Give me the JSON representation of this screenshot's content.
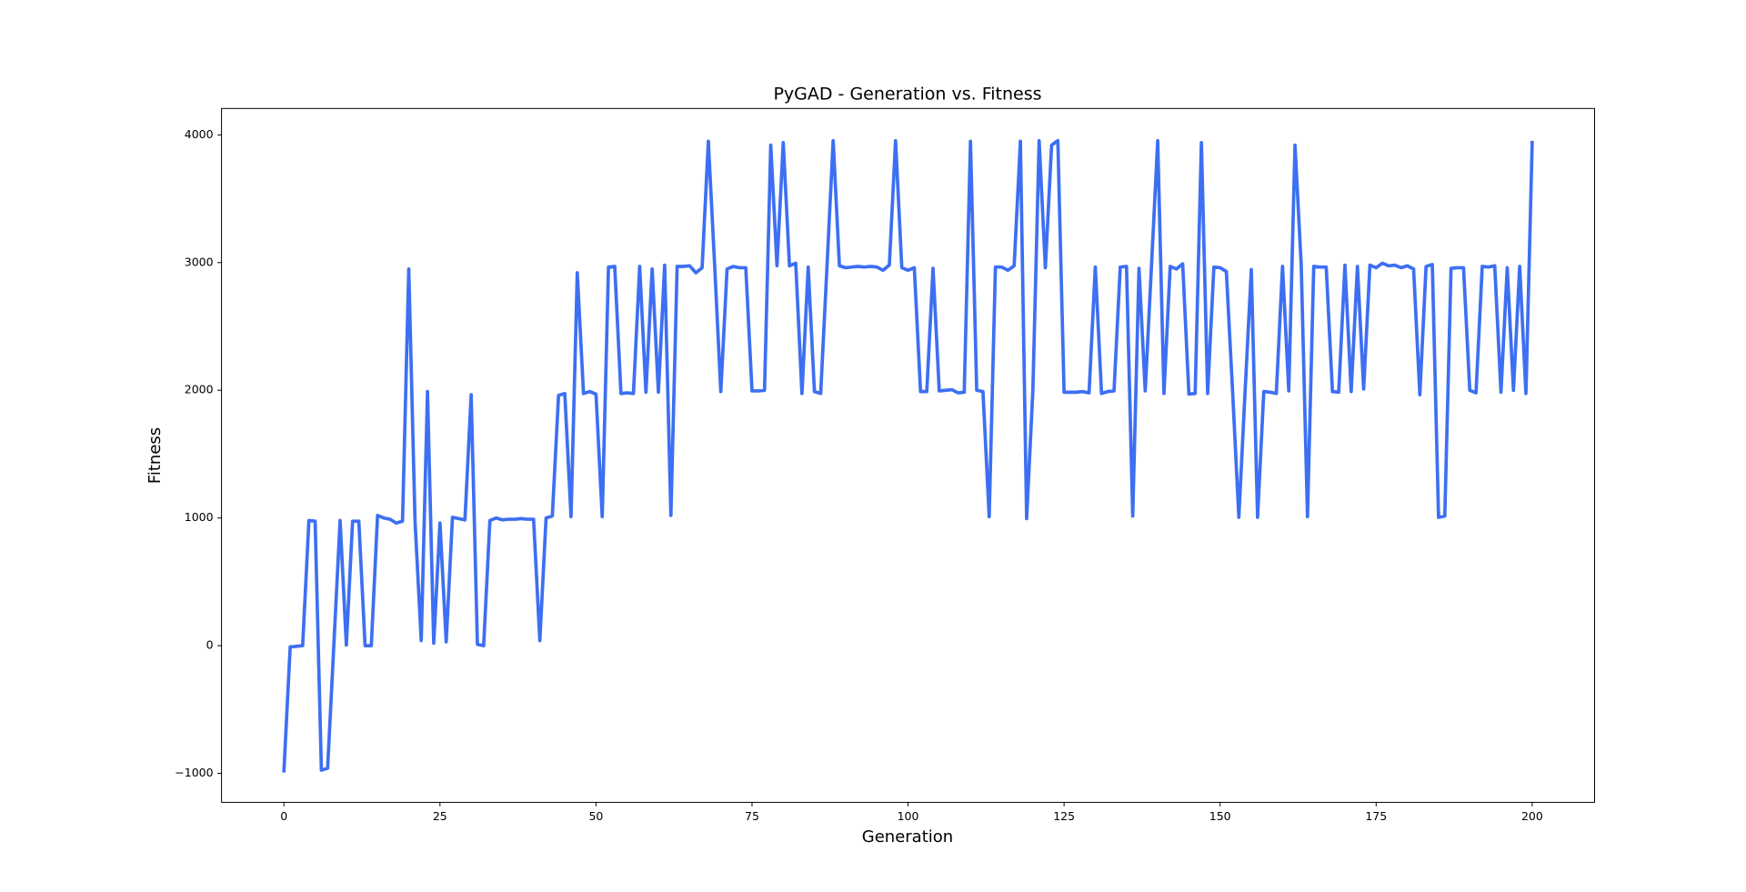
{
  "chart_data": {
    "type": "line",
    "title": "PyGAD - Generation vs. Fitness",
    "xlabel": "Generation",
    "ylabel": "Fitness",
    "color": "#3d6ff2",
    "xlim": [
      -10,
      210
    ],
    "xticks": [
      0,
      25,
      50,
      75,
      100,
      125,
      150,
      175,
      200
    ],
    "ylim": [
      -1227,
      4207
    ],
    "yticks": [
      {
        "value": -1000,
        "label": "−1000"
      },
      0,
      1000,
      2000,
      3000,
      4000
    ],
    "x": [
      0,
      1,
      2,
      3,
      4,
      5,
      6,
      7,
      8,
      9,
      10,
      11,
      12,
      13,
      14,
      15,
      16,
      17,
      18,
      19,
      20,
      21,
      22,
      23,
      24,
      25,
      26,
      27,
      28,
      29,
      30,
      31,
      32,
      33,
      34,
      35,
      36,
      37,
      38,
      39,
      40,
      41,
      42,
      43,
      44,
      45,
      46,
      47,
      48,
      49,
      50,
      51,
      52,
      53,
      54,
      55,
      56,
      57,
      58,
      59,
      60,
      61,
      62,
      63,
      64,
      65,
      66,
      67,
      68,
      69,
      70,
      71,
      72,
      73,
      74,
      75,
      76,
      77,
      78,
      79,
      80,
      81,
      82,
      83,
      84,
      85,
      86,
      87,
      88,
      89,
      90,
      91,
      92,
      93,
      94,
      95,
      96,
      97,
      98,
      99,
      100,
      101,
      102,
      103,
      104,
      105,
      106,
      107,
      108,
      109,
      110,
      111,
      112,
      113,
      114,
      115,
      116,
      117,
      118,
      119,
      120,
      121,
      122,
      123,
      124,
      125,
      126,
      127,
      128,
      129,
      130,
      131,
      132,
      133,
      134,
      135,
      136,
      137,
      138,
      139,
      140,
      141,
      142,
      143,
      144,
      145,
      146,
      147,
      148,
      149,
      150,
      151,
      152,
      153,
      154,
      155,
      156,
      157,
      158,
      159,
      160,
      161,
      162,
      163,
      164,
      165,
      166,
      167,
      168,
      169,
      170,
      171,
      172,
      173,
      174,
      175,
      176,
      177,
      178,
      179,
      180,
      181,
      182,
      183,
      184,
      185,
      186,
      187,
      188,
      189,
      190,
      191,
      192,
      193,
      194,
      195,
      196,
      197,
      198,
      199,
      200
    ],
    "values": [
      -980,
      -10,
      -5,
      0,
      980,
      975,
      -975,
      -960,
      10,
      980,
      5,
      975,
      975,
      0,
      0,
      1020,
      1000,
      990,
      960,
      975,
      2950,
      980,
      40,
      1990,
      20,
      960,
      30,
      1005,
      995,
      985,
      1965,
      10,
      0,
      980,
      1000,
      985,
      990,
      990,
      995,
      990,
      990,
      40,
      1000,
      1015,
      1960,
      1975,
      1010,
      2920,
      1975,
      1990,
      1970,
      1010,
      2965,
      2970,
      1975,
      1980,
      1975,
      2970,
      1985,
      2950,
      1985,
      2980,
      1020,
      2970,
      2970,
      2975,
      2920,
      2960,
      3950,
      2990,
      1990,
      2950,
      2970,
      2960,
      2960,
      1995,
      1995,
      2000,
      3920,
      2975,
      3940,
      2975,
      2995,
      1975,
      2965,
      1990,
      1975,
      2960,
      3955,
      2975,
      2960,
      2965,
      2970,
      2965,
      2970,
      2965,
      2940,
      2980,
      3955,
      2960,
      2940,
      2960,
      1990,
      1990,
      2955,
      1995,
      2000,
      2005,
      1980,
      1985,
      3950,
      2000,
      1990,
      1010,
      2965,
      2965,
      2940,
      2975,
      3950,
      995,
      2000,
      3955,
      2960,
      3920,
      3955,
      1985,
      1985,
      1985,
      1990,
      1980,
      2965,
      1975,
      1990,
      1995,
      2965,
      2970,
      1015,
      2955,
      1995,
      2970,
      3955,
      1975,
      2970,
      2950,
      2990,
      1970,
      1975,
      3940,
      1975,
      2965,
      2960,
      2930,
      1990,
      1005,
      1990,
      2945,
      1005,
      1990,
      1985,
      1975,
      2970,
      1995,
      3920,
      2975,
      1010,
      2970,
      2965,
      2965,
      1990,
      1985,
      2980,
      1990,
      2970,
      2010,
      2980,
      2960,
      2995,
      2975,
      2980,
      2960,
      2975,
      2950,
      1965,
      2970,
      2985,
      1005,
      1015,
      2955,
      2960,
      2960,
      2000,
      1980,
      2970,
      2965,
      2975,
      1985,
      2960,
      2000,
      2970,
      1975,
      3940
    ]
  }
}
